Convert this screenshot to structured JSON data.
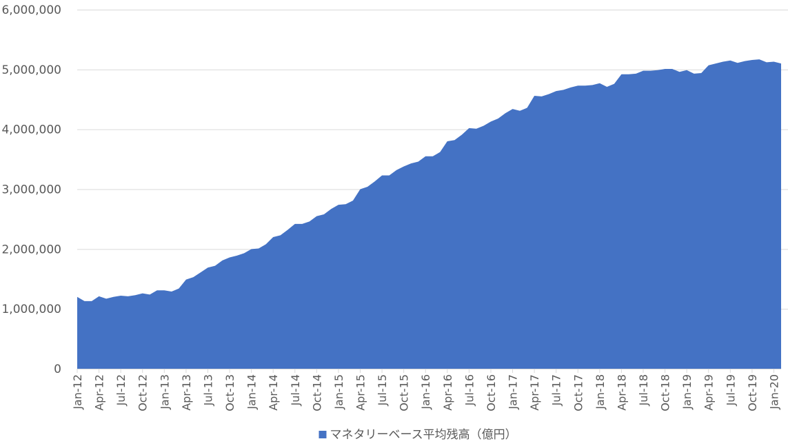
{
  "chart_data": {
    "type": "area",
    "categories": [
      "Jan-12",
      null,
      null,
      "Apr-12",
      null,
      null,
      "Jul-12",
      null,
      null,
      "Oct-12",
      null,
      null,
      "Jan-13",
      null,
      null,
      "Apr-13",
      null,
      null,
      "Jul-13",
      null,
      null,
      "Oct-13",
      null,
      null,
      "Jan-14",
      null,
      null,
      "Apr-14",
      null,
      null,
      "Jul-14",
      null,
      null,
      "Oct-14",
      null,
      null,
      "Jan-15",
      null,
      null,
      "Apr-15",
      null,
      null,
      "Jul-15",
      null,
      null,
      "Oct-15",
      null,
      null,
      "Jan-16",
      null,
      null,
      "Apr-16",
      null,
      null,
      "Jul-16",
      null,
      null,
      "Oct-16",
      null,
      null,
      "Jan-17",
      null,
      null,
      "Apr-17",
      null,
      null,
      "Jul-17",
      null,
      null,
      "Oct-17",
      null,
      null,
      "Jan-18",
      null,
      null,
      "Apr-18",
      null,
      null,
      "Jul-18",
      null,
      null,
      "Oct-18",
      null,
      null,
      "Jan-19",
      null,
      null,
      "Apr-19",
      null,
      null,
      "Jul-19",
      null,
      null,
      "Oct-19",
      null,
      null,
      "Jan-20",
      null
    ],
    "series": [
      {
        "name": "マネタリーベース平均残高（億円）",
        "color": "#4472c4",
        "values": [
          1200000,
          1130000,
          1130000,
          1210000,
          1170000,
          1200000,
          1220000,
          1210000,
          1230000,
          1260000,
          1240000,
          1310000,
          1310000,
          1290000,
          1340000,
          1490000,
          1530000,
          1610000,
          1690000,
          1720000,
          1810000,
          1860000,
          1890000,
          1930000,
          2000000,
          2010000,
          2080000,
          2200000,
          2230000,
          2320000,
          2420000,
          2420000,
          2460000,
          2550000,
          2580000,
          2670000,
          2740000,
          2750000,
          2810000,
          3000000,
          3040000,
          3130000,
          3230000,
          3230000,
          3320000,
          3380000,
          3430000,
          3460000,
          3550000,
          3550000,
          3620000,
          3800000,
          3820000,
          3910000,
          4020000,
          4010000,
          4060000,
          4130000,
          4180000,
          4270000,
          4340000,
          4310000,
          4360000,
          4560000,
          4550000,
          4590000,
          4640000,
          4660000,
          4700000,
          4730000,
          4730000,
          4740000,
          4770000,
          4710000,
          4760000,
          4920000,
          4920000,
          4930000,
          4980000,
          4980000,
          4990000,
          5010000,
          5010000,
          4960000,
          4990000,
          4930000,
          4940000,
          5070000,
          5100000,
          5130000,
          5150000,
          5110000,
          5140000,
          5160000,
          5170000,
          5120000,
          5130000,
          5100000
        ]
      }
    ],
    "ylim": [
      0,
      6000000
    ],
    "yticks": [
      0,
      {
        "value": 1000000,
        "label": "1,000,000"
      },
      {
        "value": 2000000,
        "label": "2,000,000"
      },
      {
        "value": 3000000,
        "label": "3,000,000"
      },
      {
        "value": 4000000,
        "label": "4,000,000"
      },
      {
        "value": 5000000,
        "label": "5,000,000"
      },
      {
        "value": 6000000,
        "label": "6,000,000"
      }
    ],
    "grid": true,
    "legend": "bottom"
  }
}
